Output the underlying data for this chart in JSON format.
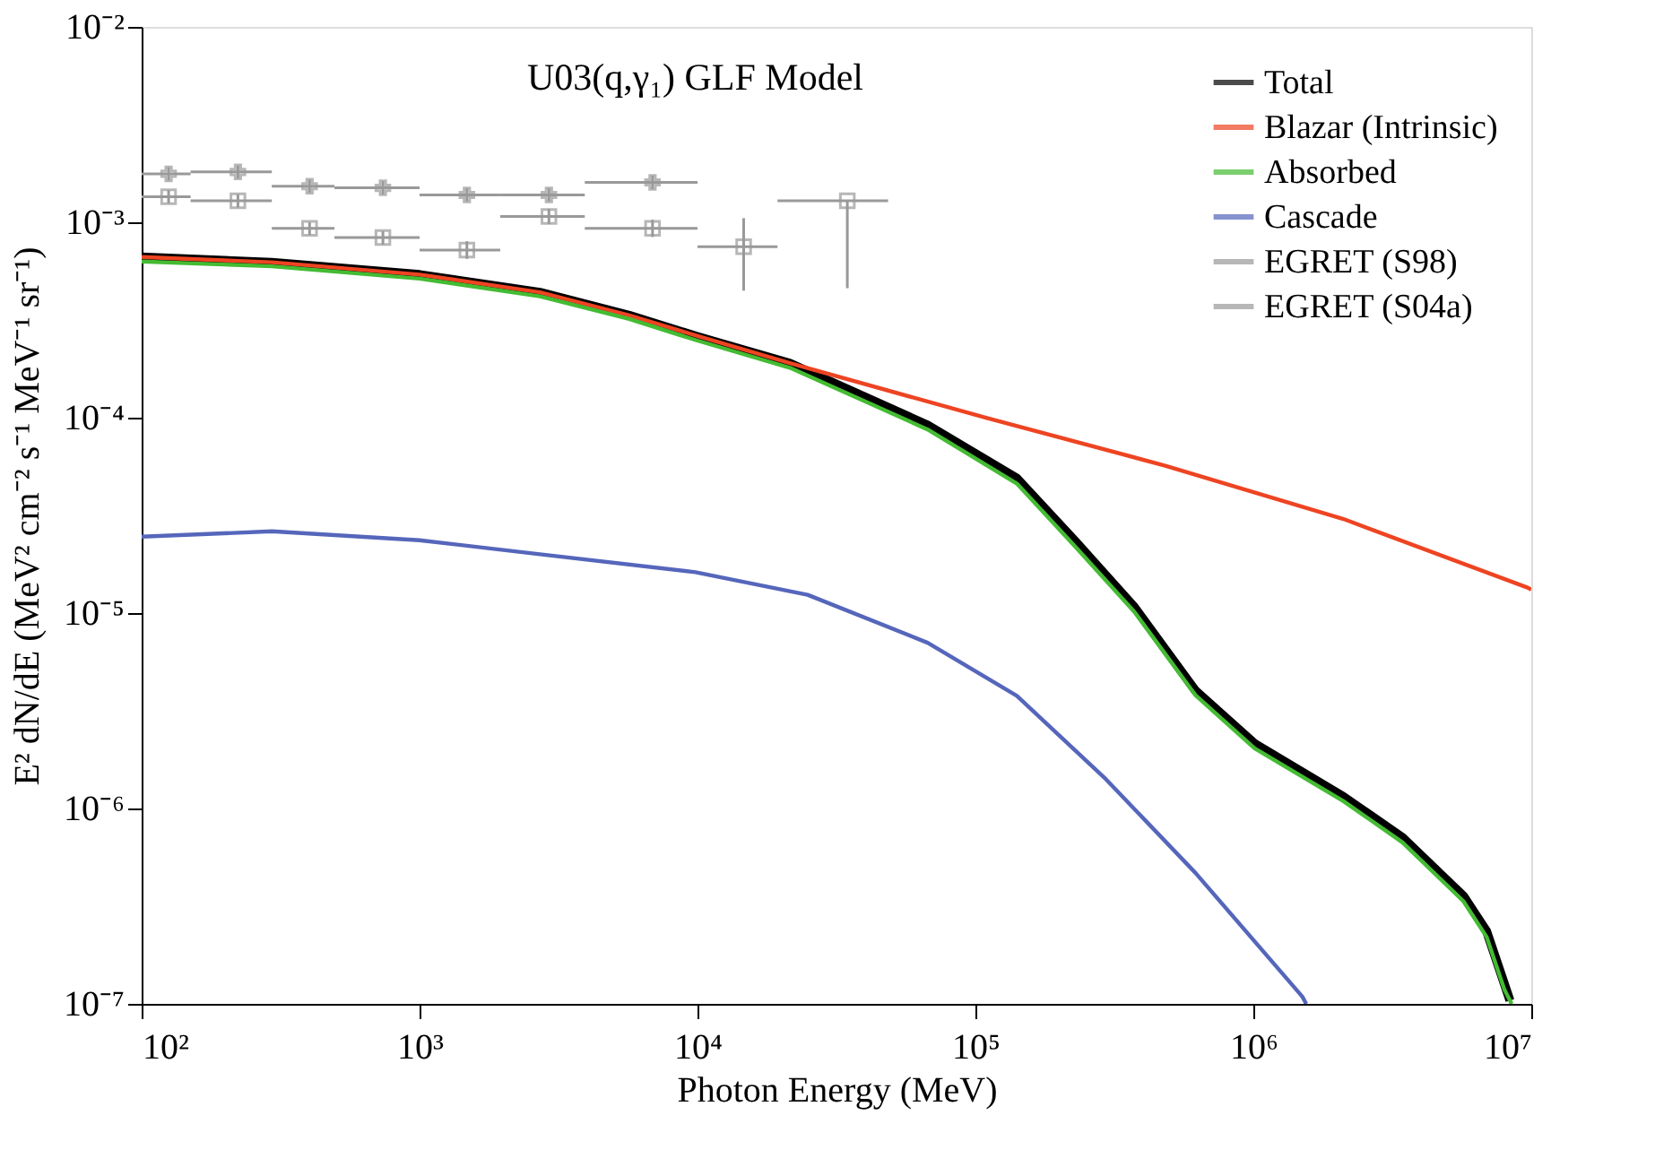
{
  "chart_data": {
    "type": "line",
    "xlabel": "Photon Energy (MeV)",
    "ylabel": "E² dN/dE (MeV² cm⁻² s⁻¹ MeV⁻¹ sr⁻¹)",
    "annotations": [
      "U03(q,γ₁) GLF Model"
    ],
    "log": "xy",
    "grid": false,
    "legend": "top right",
    "marker": "none",
    "line_style": "solid",
    "xlim": [
      100,
      10000000
    ],
    "xticks": [
      {
        "value": 100,
        "label": "10²"
      },
      {
        "value": 1000,
        "label": "10³"
      },
      {
        "value": 10000,
        "label": "10⁴"
      },
      {
        "value": 100000,
        "label": "10⁵"
      },
      {
        "value": 1000000,
        "label": "10⁶"
      },
      {
        "value": 10000000,
        "label": "10⁷"
      }
    ],
    "ylim": [
      1e-07,
      0.01
    ],
    "yticks": [
      {
        "value": 1e-07,
        "label": "10⁻⁷"
      },
      {
        "value": 1e-06,
        "label": "10⁻⁶"
      },
      {
        "value": 1e-05,
        "label": "10⁻⁵"
      },
      {
        "value": 0.0001,
        "label": "10⁻⁴"
      },
      {
        "value": 0.001,
        "label": "10⁻³"
      },
      {
        "value": 0.01,
        "label": "10⁻²"
      }
    ],
    "series": [
      {
        "name": "Total",
        "color": "#000000",
        "x": [
          100,
          294,
          1000,
          2710,
          5680,
          10000,
          21500,
          67300,
          141000,
          230000,
          374000,
          619000,
          1010000,
          2110000,
          3440000,
          5700000,
          6910000,
          8010000,
          8380000
        ],
        "values": [
          0.000664,
          0.000624,
          0.00054,
          0.000438,
          0.000334,
          0.00026,
          0.00019,
          9.16e-05,
          4.9e-05,
          2.31e-05,
          1.07e-05,
          4.01e-06,
          2.15e-06,
          1.15e-06,
          7.1e-07,
          3.57e-07,
          2.35e-07,
          1.26e-07,
          1.04e-07
        ]
      },
      {
        "name": "Blazar (Intrinsic)",
        "color": "#ee4422",
        "x": [
          100,
          294,
          1000,
          2710,
          5680,
          10000,
          21500,
          110000,
          482000,
          2110000,
          9700000,
          10000000
        ],
        "values": [
          0.000664,
          0.000624,
          0.00054,
          0.000438,
          0.000334,
          0.000262,
          0.00019,
          9.95e-05,
          5.68e-05,
          3.03e-05,
          1.35e-05,
          1.32e-05
        ]
      },
      {
        "name": "Absorbed",
        "color": "#44bb33",
        "x": [
          100,
          294,
          1000,
          2710,
          5680,
          10000,
          21500,
          67300,
          141000,
          230000,
          374000,
          619000,
          1010000,
          2110000,
          3440000,
          5700000,
          6910000,
          8010000,
          8500000
        ],
        "values": [
          0.00063,
          0.000595,
          0.000515,
          0.000418,
          0.00032,
          0.000248,
          0.00018,
          8.7e-05,
          4.6e-05,
          2.17e-05,
          1.01e-05,
          3.8e-06,
          2.03e-06,
          1.09e-06,
          6.7e-07,
          3.35e-07,
          2.2e-07,
          1.18e-07,
          1e-07
        ]
      },
      {
        "name": "Cascade",
        "color": "#5566bb",
        "x": [
          100,
          294,
          1000,
          2710,
          9820,
          24900,
          67300,
          141000,
          295000,
          619000,
          1500000,
          1550000
        ],
        "values": [
          2.46e-05,
          2.62e-05,
          2.36e-05,
          2e-05,
          1.62e-05,
          1.24e-05,
          7.05e-06,
          3.77e-06,
          1.41e-06,
          4.68e-07,
          1.09e-07,
          1e-07
        ]
      },
      {
        "name": "EGRET (S98)",
        "type": "scatter",
        "marker": "cross",
        "color": "#999999",
        "x": [
          125,
          222,
          402,
          738,
          1480,
          2920,
          6890
        ],
        "values": [
          0.00177,
          0.00181,
          0.00153,
          0.0015,
          0.00138,
          0.00138,
          0.0016
        ],
        "errors": [
          [
            0.00164,
            0.00191
          ],
          [
            0.00168,
            0.00195
          ],
          [
            0.00142,
            0.00165
          ],
          [
            0.00139,
            0.00162
          ],
          [
            0.00128,
            0.00149
          ],
          [
            0.00128,
            0.00149
          ],
          [
            0.00148,
            0.00173
          ]
        ],
        "xerrors": [
          [
            100,
            150
          ],
          [
            150,
            294
          ],
          [
            294,
            494
          ],
          [
            494,
            1000
          ],
          [
            1000,
            1950
          ],
          [
            1950,
            3930
          ],
          [
            3930,
            10000
          ]
        ]
      },
      {
        "name": "EGRET (S04a)",
        "type": "scatter",
        "marker": "square",
        "color": "#999999",
        "x": [
          125,
          222,
          402,
          738,
          1480,
          2920,
          6890,
          14660,
          34600
        ],
        "values": [
          0.00135,
          0.00129,
          0.00093,
          0.000835,
          0.00072,
          0.00107,
          0.00093,
          0.00075,
          0.00129
        ],
        "errors": [
          [
            0.00125,
            0.00146
          ],
          [
            0.00119,
            0.00139
          ],
          [
            0.00086,
            0.001
          ],
          [
            0.00077,
            0.0009
          ],
          [
            0.00065,
            0.0008
          ],
          [
            0.00098,
            0.00117
          ],
          [
            0.00084,
            0.00103
          ],
          [
            0.000447,
            0.00105
          ],
          [
            0.00046,
            0.00129
          ]
        ],
        "xerrors": [
          [
            100,
            150
          ],
          [
            150,
            294
          ],
          [
            294,
            494
          ],
          [
            494,
            1000
          ],
          [
            1000,
            1950
          ],
          [
            1950,
            3930
          ],
          [
            3930,
            10000
          ],
          [
            10000,
            19400
          ],
          [
            19400,
            48500
          ]
        ]
      }
    ]
  }
}
